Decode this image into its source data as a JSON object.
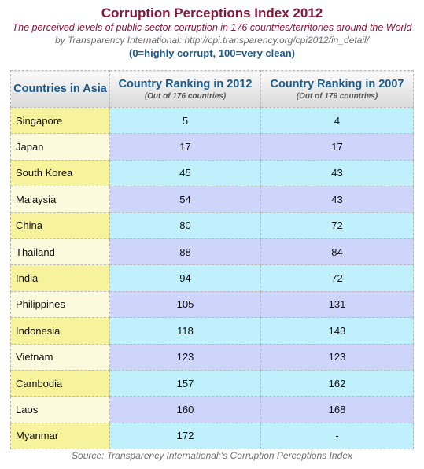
{
  "chart_data": {
    "type": "table",
    "title": "Corruption Perceptions Index 2012",
    "subtitle": "The perceived levels of public sector corruption in 176 countries/territories around the World",
    "byline": "by Transparency International: http://cpi.transparency.org/cpi2012/in_detail/",
    "scale_note": "(0=highly corrupt, 100=very clean)",
    "columns": [
      {
        "label": "Countries in Asia",
        "sublabel": ""
      },
      {
        "label": "Country Ranking in 2012",
        "sublabel": "(Out of 176 countries)"
      },
      {
        "label": "Country Ranking in 2007",
        "sublabel": "(Out of 179 countries)"
      }
    ],
    "rows": [
      {
        "country": "Singapore",
        "rank_2012": "5",
        "rank_2007": "4"
      },
      {
        "country": "Japan",
        "rank_2012": "17",
        "rank_2007": "17"
      },
      {
        "country": "South Korea",
        "rank_2012": "45",
        "rank_2007": "43"
      },
      {
        "country": "Malaysia",
        "rank_2012": "54",
        "rank_2007": "43"
      },
      {
        "country": "China",
        "rank_2012": "80",
        "rank_2007": "72"
      },
      {
        "country": "Thailand",
        "rank_2012": "88",
        "rank_2007": "84"
      },
      {
        "country": "India",
        "rank_2012": "94",
        "rank_2007": "72"
      },
      {
        "country": "Philippines",
        "rank_2012": "105",
        "rank_2007": "131"
      },
      {
        "country": "Indonesia",
        "rank_2012": "118",
        "rank_2007": "143"
      },
      {
        "country": "Vietnam",
        "rank_2012": "123",
        "rank_2007": "123"
      },
      {
        "country": "Cambodia",
        "rank_2012": "157",
        "rank_2007": "162"
      },
      {
        "country": "Laos",
        "rank_2012": "160",
        "rank_2007": "168"
      },
      {
        "country": "Myanmar",
        "rank_2012": "172",
        "rank_2007": "-"
      }
    ],
    "source": "Source: Transparency International:'s Corruption Perceptions Index"
  },
  "colors": {
    "title": "#8a1538",
    "header_text": "#1c5a8c",
    "country_odd": "#f7f39c",
    "country_even": "#fbfadc",
    "num_odd": "#bff0fb",
    "num_even": "#cdd5fb"
  }
}
